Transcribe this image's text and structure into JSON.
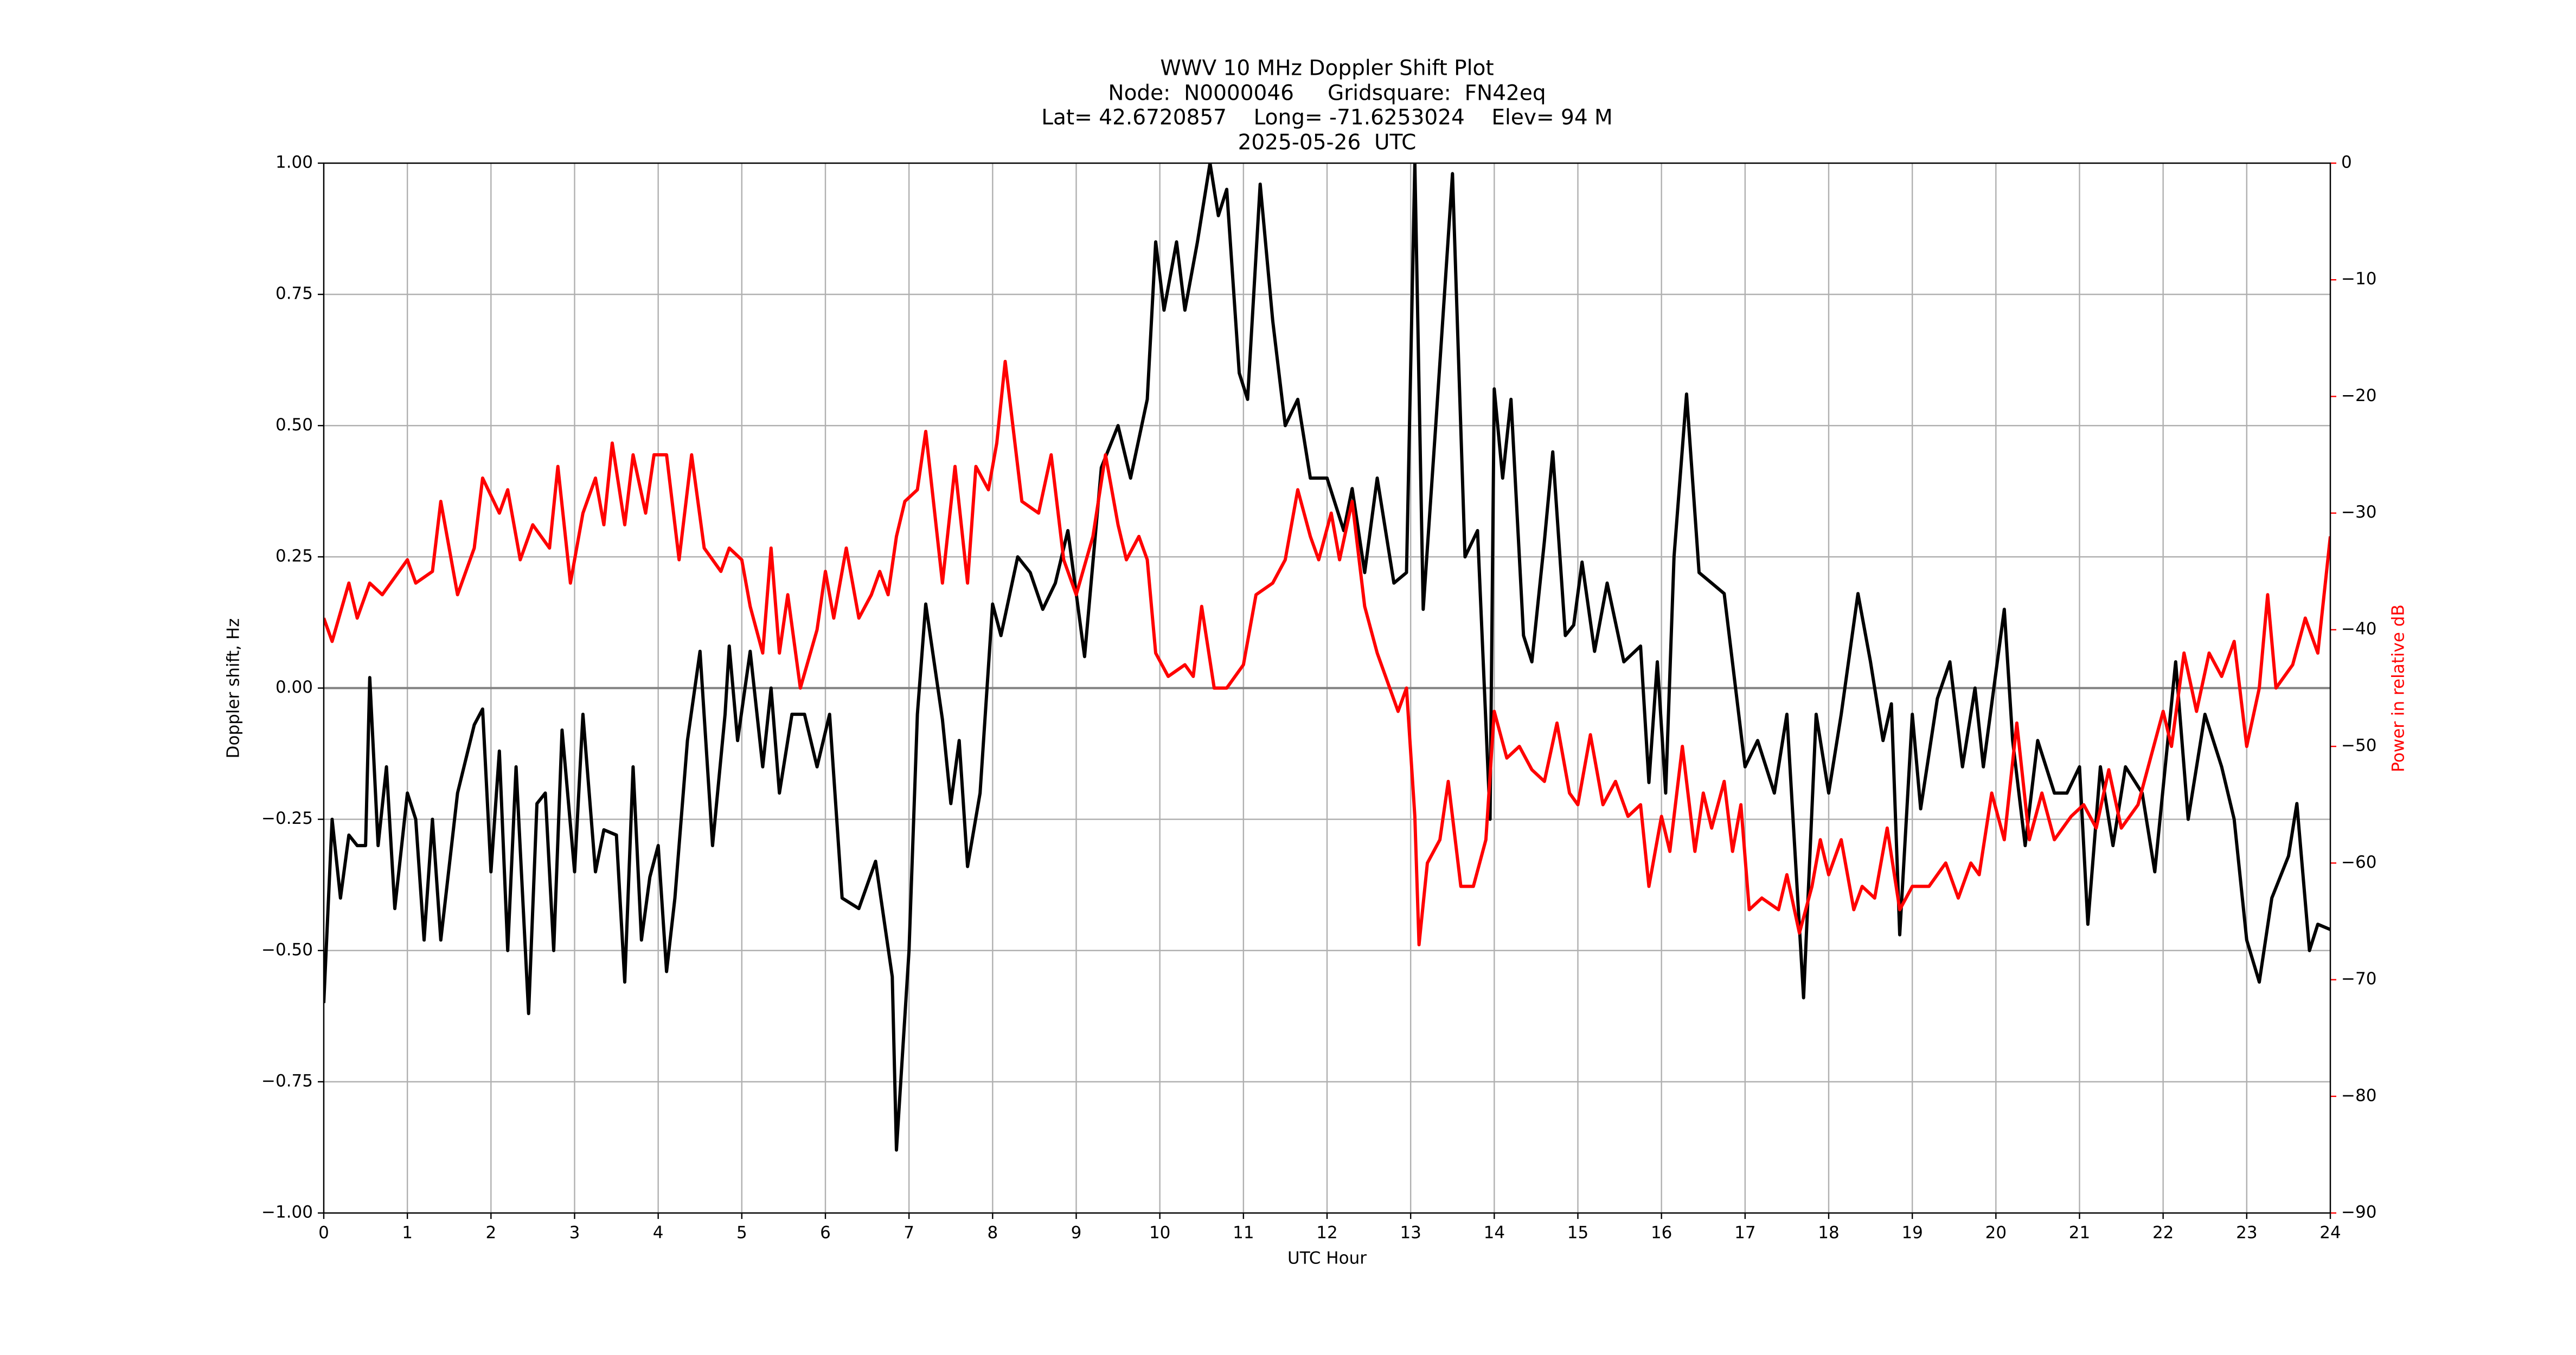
{
  "chart_data": {
    "type": "line",
    "title": [
      "WWV 10 MHz Doppler Shift Plot",
      "Node:  N0000046     Gridsquare:  FN42eq",
      "Lat= 42.6720857    Long= -71.6253024    Elev= 94 M",
      "2025-05-26  UTC"
    ],
    "xlabel": "UTC Hour",
    "ylabel": "Doppler shift, Hz",
    "y2label": "Power in relative dB",
    "xlim": [
      0,
      24
    ],
    "xticks": [
      0,
      1,
      2,
      3,
      4,
      5,
      6,
      7,
      8,
      9,
      10,
      11,
      12,
      13,
      14,
      15,
      16,
      17,
      18,
      19,
      20,
      21,
      22,
      23,
      24
    ],
    "ylim": [
      -1,
      1
    ],
    "yticks": [
      {
        "value": -1,
        "label": "−1.00"
      },
      {
        "value": -0.75,
        "label": "−0.75"
      },
      {
        "value": -0.5,
        "label": "−0.50"
      },
      {
        "value": -0.25,
        "label": "−0.25"
      },
      {
        "value": 0,
        "label": "0.00"
      },
      {
        "value": 0.25,
        "label": "0.25"
      },
      {
        "value": 0.5,
        "label": "0.50"
      },
      {
        "value": 0.75,
        "label": "0.75"
      },
      {
        "value": 1,
        "label": "1.00"
      }
    ],
    "y2lim": [
      -90,
      0
    ],
    "y2ticks": [
      {
        "value": -90,
        "label": "−90"
      },
      {
        "value": -80,
        "label": "−80"
      },
      {
        "value": -70,
        "label": "−70"
      },
      {
        "value": -60,
        "label": "−60"
      },
      {
        "value": -50,
        "label": "−50"
      },
      {
        "value": -40,
        "label": "−40"
      },
      {
        "value": -30,
        "label": "−30"
      },
      {
        "value": -20,
        "label": "−20"
      },
      {
        "value": -10,
        "label": "−10"
      },
      0
    ],
    "y2color": "#ff0000",
    "grid": true,
    "series": [
      {
        "color": "#000000",
        "x": [
          0,
          0.1,
          0.2,
          0.3,
          0.4,
          0.5,
          0.55,
          0.65,
          0.75,
          0.85,
          1.0,
          1.1,
          1.2,
          1.3,
          1.4,
          1.6,
          1.8,
          1.9,
          2.0,
          2.1,
          2.2,
          2.3,
          2.45,
          2.55,
          2.65,
          2.75,
          2.85,
          3.0,
          3.1,
          3.25,
          3.35,
          3.5,
          3.6,
          3.7,
          3.8,
          3.9,
          4.0,
          4.1,
          4.2,
          4.35,
          4.5,
          4.65,
          4.8,
          4.85,
          4.95,
          5.1,
          5.25,
          5.35,
          5.45,
          5.6,
          5.75,
          5.9,
          6.05,
          6.2,
          6.4,
          6.6,
          6.8,
          6.85,
          7.0,
          7.1,
          7.2,
          7.4,
          7.5,
          7.6,
          7.7,
          7.85,
          8.0,
          8.1,
          8.3,
          8.45,
          8.6,
          8.75,
          8.9,
          9.1,
          9.3,
          9.5,
          9.65,
          9.85,
          9.95,
          10.05,
          10.2,
          10.3,
          10.45,
          10.6,
          10.7,
          10.8,
          10.95,
          11.05,
          11.2,
          11.35,
          11.5,
          11.65,
          11.8,
          12.0,
          12.2,
          12.3,
          12.45,
          12.6,
          12.8,
          12.95,
          13.05,
          13.15,
          13.3,
          13.5,
          13.65,
          13.8,
          13.95,
          14.0,
          14.1,
          14.2,
          14.35,
          14.45,
          14.6,
          14.7,
          14.85,
          14.95,
          15.05,
          15.2,
          15.35,
          15.55,
          15.75,
          15.85,
          15.95,
          16.05,
          16.15,
          16.3,
          16.45,
          16.6,
          16.75,
          17.0,
          17.15,
          17.35,
          17.5,
          17.7,
          17.85,
          18.0,
          18.15,
          18.35,
          18.5,
          18.65,
          18.75,
          18.85,
          19.0,
          19.1,
          19.3,
          19.45,
          19.6,
          19.75,
          19.85,
          20.1,
          20.2,
          20.35,
          20.5,
          20.7,
          20.85,
          21.0,
          21.1,
          21.25,
          21.4,
          21.55,
          21.75,
          21.9,
          22.15,
          22.3,
          22.5,
          22.7,
          22.85,
          23.0,
          23.15,
          23.3,
          23.5,
          23.6,
          23.75,
          23.85,
          24.0
        ],
        "values": [
          -0.6,
          -0.25,
          -0.4,
          -0.28,
          -0.3,
          -0.3,
          0.02,
          -0.3,
          -0.15,
          -0.42,
          -0.2,
          -0.25,
          -0.48,
          -0.25,
          -0.48,
          -0.2,
          -0.07,
          -0.04,
          -0.35,
          -0.12,
          -0.5,
          -0.15,
          -0.62,
          -0.22,
          -0.2,
          -0.5,
          -0.08,
          -0.35,
          -0.05,
          -0.35,
          -0.27,
          -0.28,
          -0.56,
          -0.15,
          -0.48,
          -0.36,
          -0.3,
          -0.54,
          -0.4,
          -0.1,
          0.07,
          -0.3,
          -0.05,
          0.08,
          -0.1,
          0.07,
          -0.15,
          0.0,
          -0.2,
          -0.05,
          -0.05,
          -0.15,
          -0.05,
          -0.4,
          -0.42,
          -0.33,
          -0.55,
          -0.88,
          -0.5,
          -0.05,
          0.16,
          -0.06,
          -0.22,
          -0.1,
          -0.34,
          -0.2,
          0.16,
          0.1,
          0.25,
          0.22,
          0.15,
          0.2,
          0.3,
          0.06,
          0.42,
          0.5,
          0.4,
          0.55,
          0.85,
          0.72,
          0.85,
          0.72,
          0.85,
          1.0,
          0.9,
          0.95,
          0.6,
          0.55,
          0.96,
          0.7,
          0.5,
          0.55,
          0.4,
          0.4,
          0.3,
          0.38,
          0.22,
          0.4,
          0.2,
          0.22,
          1.0,
          0.15,
          0.5,
          0.98,
          0.25,
          0.3,
          -0.25,
          0.57,
          0.4,
          0.55,
          0.1,
          0.05,
          0.28,
          0.45,
          0.1,
          0.12,
          0.24,
          0.07,
          0.2,
          0.05,
          0.08,
          -0.18,
          0.05,
          -0.2,
          0.25,
          0.56,
          0.22,
          0.2,
          0.18,
          -0.15,
          -0.1,
          -0.2,
          -0.05,
          -0.59,
          -0.05,
          -0.2,
          -0.05,
          0.18,
          0.05,
          -0.1,
          -0.03,
          -0.47,
          -0.05,
          -0.23,
          -0.02,
          0.05,
          -0.15,
          0.0,
          -0.15,
          0.15,
          -0.1,
          -0.3,
          -0.1,
          -0.2,
          -0.2,
          -0.15,
          -0.45,
          -0.15,
          -0.3,
          -0.15,
          -0.2,
          -0.35,
          0.05,
          -0.25,
          -0.05,
          -0.15,
          -0.25,
          -0.48,
          -0.56,
          -0.4,
          -0.32,
          -0.22,
          -0.5,
          -0.45,
          -0.46
        ]
      },
      {
        "color": "#ff0000",
        "axis": "y2",
        "x": [
          0,
          0.1,
          0.3,
          0.4,
          0.55,
          0.7,
          0.9,
          1.0,
          1.1,
          1.3,
          1.4,
          1.6,
          1.8,
          1.9,
          2.1,
          2.2,
          2.35,
          2.5,
          2.7,
          2.8,
          2.95,
          3.1,
          3.25,
          3.35,
          3.45,
          3.6,
          3.7,
          3.85,
          3.95,
          4.1,
          4.25,
          4.4,
          4.55,
          4.75,
          4.85,
          5.0,
          5.1,
          5.25,
          5.35,
          5.45,
          5.55,
          5.7,
          5.9,
          6.0,
          6.1,
          6.25,
          6.4,
          6.55,
          6.65,
          6.75,
          6.85,
          6.95,
          7.1,
          7.2,
          7.4,
          7.55,
          7.7,
          7.8,
          7.95,
          8.05,
          8.15,
          8.35,
          8.55,
          8.7,
          8.85,
          9.0,
          9.2,
          9.35,
          9.5,
          9.6,
          9.75,
          9.85,
          9.95,
          10.1,
          10.3,
          10.4,
          10.5,
          10.65,
          10.8,
          11.0,
          11.15,
          11.35,
          11.5,
          11.65,
          11.8,
          11.9,
          12.05,
          12.15,
          12.3,
          12.45,
          12.6,
          12.75,
          12.85,
          12.95,
          13.05,
          13.1,
          13.2,
          13.35,
          13.45,
          13.6,
          13.75,
          13.9,
          14.0,
          14.15,
          14.3,
          14.45,
          14.6,
          14.75,
          14.9,
          15.0,
          15.15,
          15.3,
          15.45,
          15.6,
          15.75,
          15.85,
          16.0,
          16.1,
          16.25,
          16.4,
          16.5,
          16.6,
          16.75,
          16.85,
          16.95,
          17.05,
          17.2,
          17.4,
          17.5,
          17.65,
          17.8,
          17.9,
          18.0,
          18.15,
          18.3,
          18.4,
          18.55,
          18.7,
          18.85,
          19.0,
          19.2,
          19.4,
          19.55,
          19.7,
          19.8,
          19.95,
          20.1,
          20.25,
          20.4,
          20.55,
          20.7,
          20.9,
          21.05,
          21.2,
          21.35,
          21.5,
          21.7,
          21.85,
          22.0,
          22.1,
          22.25,
          22.4,
          22.55,
          22.7,
          22.85,
          23.0,
          23.15,
          23.25,
          23.35,
          23.55,
          23.7,
          23.85,
          24.0
        ],
        "values": [
          -39,
          -41,
          -36,
          -39,
          -36,
          -37,
          -35,
          -34,
          -36,
          -35,
          -29,
          -37,
          -33,
          -27,
          -30,
          -28,
          -34,
          -31,
          -33,
          -26,
          -36,
          -30,
          -27,
          -31,
          -24,
          -31,
          -25,
          -30,
          -25,
          -25,
          -34,
          -25,
          -33,
          -35,
          -33,
          -34,
          -38,
          -42,
          -33,
          -42,
          -37,
          -45,
          -40,
          -35,
          -39,
          -33,
          -39,
          -37,
          -35,
          -37,
          -32,
          -29,
          -28,
          -23,
          -36,
          -26,
          -36,
          -26,
          -28,
          -24,
          -17,
          -29,
          -30,
          -25,
          -34,
          -37,
          -32,
          -25,
          -31,
          -34,
          -32,
          -34,
          -42,
          -44,
          -43,
          -44,
          -38,
          -45,
          -45,
          -43,
          -37,
          -36,
          -34,
          -28,
          -32,
          -34,
          -30,
          -34,
          -29,
          -38,
          -42,
          -45,
          -47,
          -45,
          -56,
          -67,
          -60,
          -58,
          -53,
          -62,
          -62,
          -58,
          -47,
          -51,
          -50,
          -52,
          -53,
          -48,
          -54,
          -55,
          -49,
          -55,
          -53,
          -56,
          -55,
          -62,
          -56,
          -59,
          -50,
          -59,
          -54,
          -57,
          -53,
          -59,
          -55,
          -64,
          -63,
          -64,
          -61,
          -66,
          -62,
          -58,
          -61,
          -58,
          -64,
          -62,
          -63,
          -57,
          -64,
          -62,
          -62,
          -60,
          -63,
          -60,
          -61,
          -54,
          -58,
          -48,
          -58,
          -54,
          -58,
          -56,
          -55,
          -57,
          -52,
          -57,
          -55,
          -51,
          -47,
          -50,
          -42,
          -47,
          -42,
          -44,
          -41,
          -50,
          -45,
          -37,
          -45,
          -43,
          -39,
          -42,
          -32
        ]
      }
    ]
  }
}
